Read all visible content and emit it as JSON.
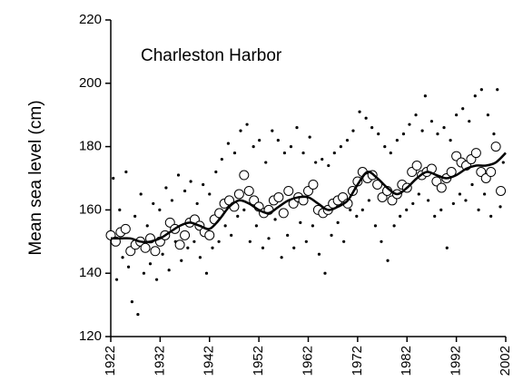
{
  "chart_data": {
    "type": "scatter",
    "title": "Charleston Harbor",
    "y_label": "Mean sea level (cm)",
    "xlim": [
      1922,
      2002
    ],
    "xticks": [
      1922,
      1932,
      1942,
      1952,
      1962,
      1972,
      1982,
      1992,
      2002
    ],
    "ylim": [
      120,
      220
    ],
    "yticks": [
      120,
      140,
      160,
      180,
      200,
      220
    ],
    "series": [
      {
        "marker": "dot",
        "color": "#000000",
        "x": [
          1922.5,
          1923.2,
          1923.8,
          1924.4,
          1925.1,
          1925.6,
          1926.3,
          1926.9,
          1927.5,
          1928.1,
          1928.7,
          1929.4,
          1930.0,
          1930.6,
          1931.3,
          1931.9,
          1932.5,
          1933.2,
          1933.8,
          1934.4,
          1935.1,
          1935.7,
          1936.3,
          1937.0,
          1937.6,
          1938.2,
          1938.9,
          1939.5,
          1940.1,
          1940.7,
          1941.4,
          1942.0,
          1942.6,
          1943.3,
          1943.9,
          1944.5,
          1945.2,
          1945.8,
          1946.4,
          1947.1,
          1947.7,
          1948.3,
          1949.0,
          1949.6,
          1950.2,
          1950.9,
          1951.5,
          1952.1,
          1952.8,
          1953.4,
          1954.0,
          1954.7,
          1955.3,
          1955.9,
          1956.6,
          1957.2,
          1957.8,
          1958.5,
          1959.1,
          1959.7,
          1960.4,
          1961.0,
          1961.6,
          1962.3,
          1962.9,
          1963.5,
          1964.2,
          1964.8,
          1965.4,
          1966.1,
          1966.7,
          1967.3,
          1968.0,
          1968.6,
          1969.2,
          1969.9,
          1970.5,
          1971.1,
          1971.8,
          1972.4,
          1973.0,
          1973.7,
          1974.3,
          1974.9,
          1975.6,
          1976.2,
          1976.8,
          1977.5,
          1978.1,
          1978.7,
          1979.4,
          1980.0,
          1980.6,
          1981.3,
          1981.9,
          1982.5,
          1983.2,
          1983.8,
          1984.4,
          1985.1,
          1985.7,
          1986.3,
          1987.0,
          1987.6,
          1988.2,
          1988.9,
          1989.5,
          1990.1,
          1990.8,
          1991.4,
          1992.0,
          1992.7,
          1993.3,
          1993.9,
          1994.6,
          1995.2,
          1995.8,
          1996.5,
          1997.1,
          1997.7,
          1998.4,
          1999.0,
          1999.6,
          2000.3,
          2000.9,
          2001.5
        ],
        "values": [
          170,
          138,
          160,
          145,
          172,
          142,
          131,
          158,
          127,
          165,
          140,
          155,
          143,
          162,
          138,
          160,
          146,
          167,
          141,
          163,
          150,
          171,
          144,
          166,
          148,
          169,
          150,
          162,
          145,
          168,
          140,
          165,
          148,
          172,
          150,
          176,
          155,
          181,
          152,
          178,
          158,
          185,
          160,
          187,
          150,
          180,
          155,
          182,
          148,
          175,
          151,
          185,
          157,
          182,
          145,
          178,
          152,
          180,
          148,
          186,
          156,
          178,
          150,
          183,
          155,
          175,
          146,
          176,
          140,
          174,
          152,
          178,
          156,
          180,
          150,
          182,
          160,
          185,
          158,
          191,
          160,
          189,
          163,
          186,
          155,
          184,
          150,
          180,
          144,
          178,
          155,
          182,
          158,
          184,
          160,
          187,
          162,
          190,
          165,
          185,
          196,
          163,
          188,
          158,
          184,
          160,
          186,
          148,
          182,
          162,
          190,
          165,
          192,
          163,
          188,
          168,
          196,
          160,
          198,
          165,
          190,
          158,
          184,
          198,
          161,
          175
        ]
      },
      {
        "marker": "circle",
        "color": "#000000",
        "x": [
          1922,
          1923,
          1924,
          1925,
          1926,
          1927,
          1928,
          1929,
          1930,
          1931,
          1932,
          1933,
          1934,
          1935,
          1936,
          1937,
          1938,
          1939,
          1940,
          1941,
          1942,
          1943,
          1944,
          1945,
          1946,
          1947,
          1948,
          1949,
          1950,
          1951,
          1952,
          1953,
          1954,
          1955,
          1956,
          1957,
          1958,
          1959,
          1960,
          1961,
          1962,
          1963,
          1964,
          1965,
          1966,
          1967,
          1968,
          1969,
          1970,
          1971,
          1972,
          1973,
          1974,
          1975,
          1976,
          1977,
          1978,
          1979,
          1980,
          1981,
          1982,
          1983,
          1984,
          1985,
          1986,
          1987,
          1988,
          1989,
          1990,
          1991,
          1992,
          1993,
          1994,
          1995,
          1996,
          1997,
          1998,
          1999,
          2000,
          2001
        ],
        "values": [
          152,
          150,
          153,
          154,
          147,
          149,
          150,
          148,
          151,
          147,
          150,
          152,
          156,
          154,
          149,
          152,
          156,
          157,
          155,
          153,
          152,
          157,
          159,
          162,
          163,
          161,
          165,
          171,
          166,
          163,
          161,
          159,
          160,
          163,
          164,
          159,
          166,
          162,
          164,
          163,
          166,
          168,
          160,
          159,
          160,
          162,
          163,
          164,
          162,
          166,
          169,
          172,
          170,
          171,
          168,
          164,
          166,
          163,
          165,
          168,
          167,
          172,
          174,
          171,
          172,
          173,
          169,
          167,
          170,
          172,
          177,
          175,
          174,
          176,
          178,
          172,
          170,
          172,
          180,
          166
        ]
      },
      {
        "marker": "line",
        "color": "#000000",
        "x": [
          1922,
          1924,
          1926,
          1928,
          1930,
          1932,
          1934,
          1936,
          1938,
          1940,
          1942,
          1944,
          1946,
          1948,
          1950,
          1952,
          1954,
          1956,
          1958,
          1960,
          1962,
          1964,
          1966,
          1968,
          1970,
          1972,
          1974,
          1976,
          1978,
          1980,
          1982,
          1984,
          1986,
          1988,
          1990,
          1992,
          1994,
          1996,
          1998,
          2000,
          2002
        ],
        "values": [
          151,
          151,
          151,
          150,
          150,
          151,
          153,
          155,
          156,
          155,
          154,
          157,
          161,
          163,
          162,
          160,
          159,
          161,
          163,
          164,
          164,
          162,
          160,
          161,
          163,
          168,
          172,
          170,
          167,
          165,
          167,
          170,
          172,
          171,
          170,
          171,
          173,
          174,
          174,
          175,
          178
        ]
      }
    ]
  }
}
